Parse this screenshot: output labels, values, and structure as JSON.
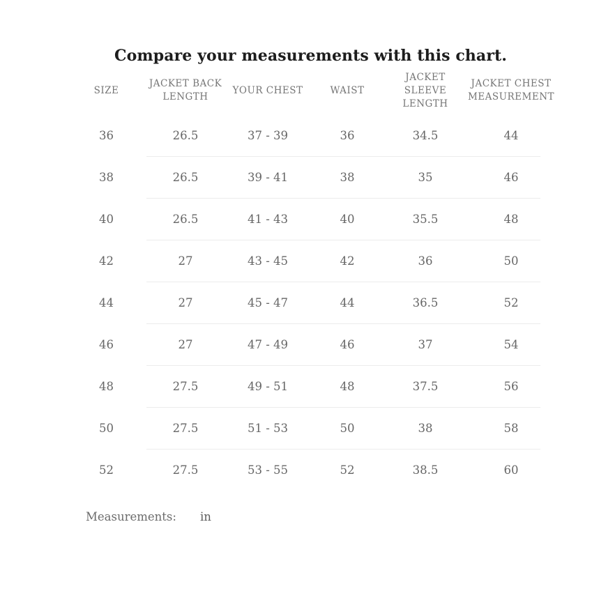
{
  "title": "Compare your measurements with this chart.",
  "chart_data": {
    "type": "table",
    "title": "Compare your measurements with this chart.",
    "columns": [
      "SIZE",
      "JACKET BACK LENGTH",
      "YOUR CHEST",
      "WAIST",
      "JACKET SLEEVE LENGTH",
      "JACKET CHEST MEASUREMENT"
    ],
    "rows": [
      [
        "36",
        "26.5",
        "37 - 39",
        "36",
        "34.5",
        "44"
      ],
      [
        "38",
        "26.5",
        "39 - 41",
        "38",
        "35",
        "46"
      ],
      [
        "40",
        "26.5",
        "41 - 43",
        "40",
        "35.5",
        "48"
      ],
      [
        "42",
        "27",
        "43 - 45",
        "42",
        "36",
        "50"
      ],
      [
        "44",
        "27",
        "45 - 47",
        "44",
        "36.5",
        "52"
      ],
      [
        "46",
        "27",
        "47 - 49",
        "46",
        "37",
        "54"
      ],
      [
        "48",
        "27.5",
        "49 - 51",
        "48",
        "37.5",
        "56"
      ],
      [
        "50",
        "27.5",
        "51 - 53",
        "50",
        "38",
        "58"
      ],
      [
        "52",
        "27.5",
        "53 - 55",
        "52",
        "38.5",
        "60"
      ]
    ],
    "unit": "in"
  },
  "footer": {
    "label": "Measurements:",
    "unit": "in"
  },
  "colors": {
    "title_text": "#1d1d1d",
    "header_text": "#757575",
    "cell_text": "#666666",
    "divider": "#ececec",
    "background": "#ffffff"
  }
}
